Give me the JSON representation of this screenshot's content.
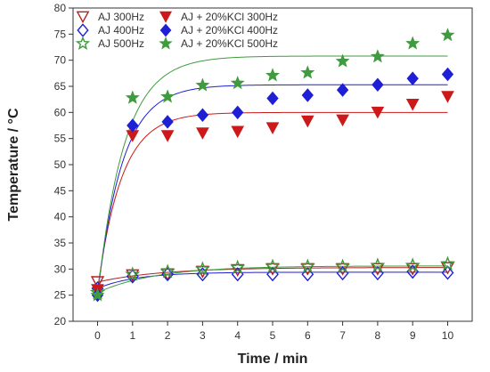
{
  "chart_data": {
    "type": "scatter",
    "xlabel": "Time / min",
    "ylabel": "Temperature / °C",
    "xlim": [
      -0.7,
      10.7
    ],
    "ylim": [
      20,
      80
    ],
    "xticks": [
      0,
      1,
      2,
      3,
      4,
      5,
      6,
      7,
      8,
      9,
      10
    ],
    "yticks": [
      20,
      25,
      30,
      35,
      40,
      45,
      50,
      55,
      60,
      65,
      70,
      75,
      80
    ],
    "legend_position": "top-left",
    "x": [
      0,
      1,
      2,
      3,
      4,
      5,
      6,
      7,
      8,
      9,
      10
    ],
    "series": [
      {
        "name": "AJ 300Hz",
        "color": "#b22222",
        "marker": "triangle-down-open",
        "values": [
          27.5,
          28.8,
          29.0,
          29.5,
          29.8,
          30.0,
          30.0,
          30.0,
          30.0,
          30.0,
          30.2
        ],
        "fit": {
          "y0": 27.5,
          "ymax": 30.3,
          "k": 0.55
        }
      },
      {
        "name": "AJ 400Hz",
        "color": "#1f1fd6",
        "marker": "diamond-open",
        "values": [
          26.3,
          28.6,
          29.0,
          29.0,
          29.0,
          29.0,
          29.0,
          29.2,
          29.2,
          29.5,
          29.3
        ],
        "fit": {
          "y0": 26.3,
          "ymax": 29.4,
          "k": 0.9
        }
      },
      {
        "name": "AJ 500Hz",
        "color": "#3f9b3f",
        "marker": "star-open",
        "values": [
          25.5,
          29.0,
          29.5,
          30.0,
          30.3,
          30.5,
          30.5,
          30.5,
          30.7,
          30.7,
          31.0
        ],
        "fit": {
          "y0": 25.5,
          "ymax": 30.6,
          "k": 0.6
        }
      },
      {
        "name": "AJ + 20%KCl 300Hz",
        "color": "#cc1a1a",
        "marker": "triangle-down",
        "values": [
          26.0,
          55.5,
          55.5,
          56.0,
          56.3,
          57.0,
          58.3,
          58.5,
          60.0,
          61.5,
          63.0
        ],
        "fit": {
          "y0": 26.0,
          "ymax": 60.0,
          "k": 1.45
        }
      },
      {
        "name": "AJ + 20%KCl 400Hz",
        "color": "#1f1fd6",
        "marker": "diamond",
        "values": [
          25.0,
          57.5,
          58.2,
          59.5,
          60.0,
          62.7,
          63.3,
          64.3,
          65.3,
          66.5,
          67.3
        ],
        "fit": {
          "y0": 25.0,
          "ymax": 65.3,
          "k": 1.4
        }
      },
      {
        "name": "AJ + 20%KCl 500Hz",
        "color": "#3f9b3f",
        "marker": "star",
        "values": [
          25.0,
          62.8,
          63.0,
          65.2,
          65.6,
          67.1,
          67.6,
          69.8,
          70.7,
          73.2,
          74.8
        ],
        "fit": {
          "y0": 25.0,
          "ymax": 70.8,
          "k": 1.3
        }
      }
    ]
  }
}
